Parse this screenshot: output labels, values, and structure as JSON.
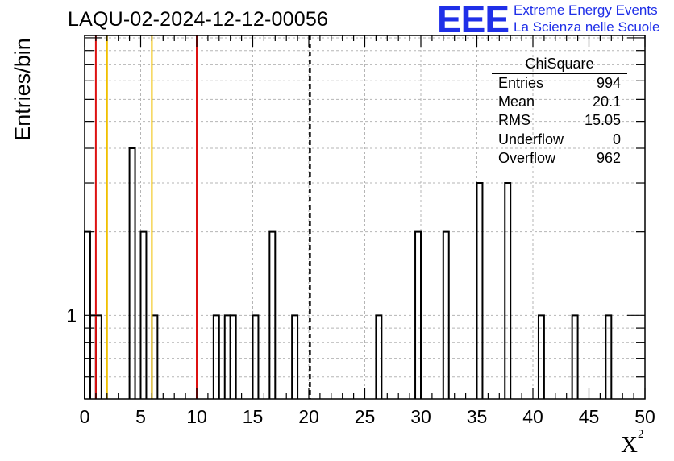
{
  "header": {
    "title": "LAQU-02-2024-12-12-00056"
  },
  "logo": {
    "mark": "EEE",
    "line1": "Extreme Energy Events",
    "line2": "La Scienza nelle Scuole",
    "color": "#1f2fe8"
  },
  "stats": {
    "name": "ChiSquare",
    "rows": [
      {
        "label": "Entries",
        "value": "994"
      },
      {
        "label": "Mean",
        "value": "20.1"
      },
      {
        "label": "RMS",
        "value": "15.05"
      },
      {
        "label": "Underflow",
        "value": "0"
      },
      {
        "label": "Overflow",
        "value": "962"
      }
    ]
  },
  "chart_data": {
    "type": "bar",
    "histogram": true,
    "xlabel": "X²",
    "ylabel": "Entries/bin",
    "xlim": [
      0,
      50
    ],
    "yscale": "log",
    "ylim": [
      0.5,
      10.2
    ],
    "x_ticks": [
      "0",
      "5",
      "10",
      "15",
      "20",
      "25",
      "30",
      "35",
      "40",
      "45",
      "50"
    ],
    "y_tick_labels": [
      "1"
    ],
    "grid": true,
    "bin_width": 0.5,
    "bins": [
      {
        "x": 0.0,
        "value": 2
      },
      {
        "x": 0.5,
        "value": 1
      },
      {
        "x": 1.0,
        "value": 1
      },
      {
        "x": 4.0,
        "value": 4
      },
      {
        "x": 5.0,
        "value": 2
      },
      {
        "x": 6.0,
        "value": 1
      },
      {
        "x": 11.5,
        "value": 1
      },
      {
        "x": 12.5,
        "value": 1
      },
      {
        "x": 13.0,
        "value": 1
      },
      {
        "x": 15.0,
        "value": 1
      },
      {
        "x": 16.5,
        "value": 2
      },
      {
        "x": 18.5,
        "value": 1
      },
      {
        "x": 26.0,
        "value": 1
      },
      {
        "x": 29.5,
        "value": 2
      },
      {
        "x": 32.0,
        "value": 2
      },
      {
        "x": 35.0,
        "value": 3
      },
      {
        "x": 37.5,
        "value": 3
      },
      {
        "x": 40.5,
        "value": 1
      },
      {
        "x": 43.5,
        "value": 1
      },
      {
        "x": 46.5,
        "value": 1
      }
    ],
    "vertical_lines": [
      {
        "x": 1,
        "color": "#dd1111",
        "style": "solid"
      },
      {
        "x": 2,
        "color": "#f0c000",
        "style": "solid"
      },
      {
        "x": 6,
        "color": "#f0c000",
        "style": "solid"
      },
      {
        "x": 10,
        "color": "#dd1111",
        "style": "solid"
      },
      {
        "x": 20.1,
        "color": "#000000",
        "style": "dashed"
      }
    ]
  }
}
